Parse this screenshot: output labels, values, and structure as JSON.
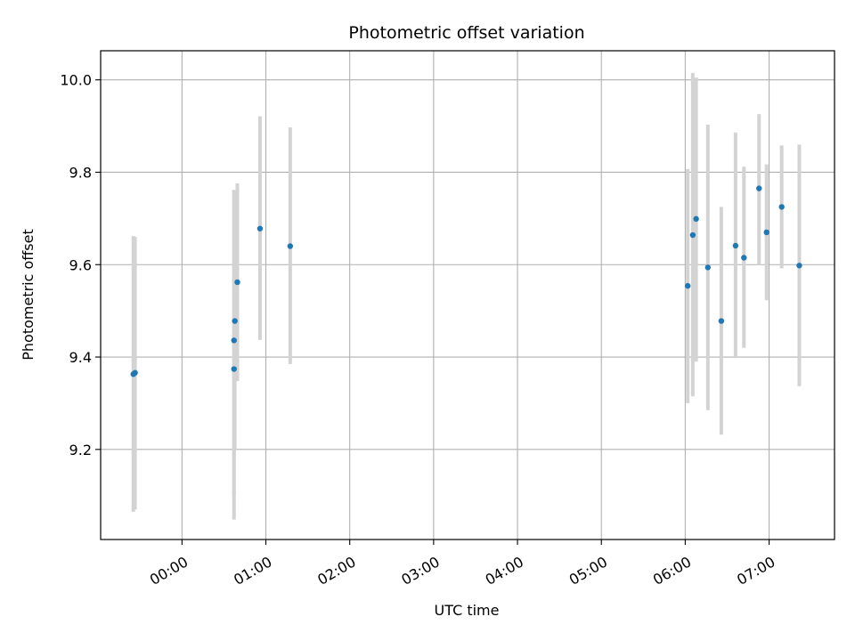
{
  "chart_data": {
    "type": "scatter",
    "title": "Photometric offset variation",
    "xlabel": "UTC time",
    "ylabel": "Photometric offset",
    "x_unit": "hours UTC",
    "xlim": [
      -0.97,
      7.78
    ],
    "ylim": [
      9.005,
      10.063
    ],
    "x_ticks": [
      {
        "value": 0,
        "label": "00:00"
      },
      {
        "value": 1,
        "label": "01:00"
      },
      {
        "value": 2,
        "label": "02:00"
      },
      {
        "value": 3,
        "label": "03:00"
      },
      {
        "value": 4,
        "label": "04:00"
      },
      {
        "value": 5,
        "label": "05:00"
      },
      {
        "value": 6,
        "label": "06:00"
      },
      {
        "value": 7,
        "label": "07:00"
      }
    ],
    "y_ticks": [
      {
        "value": 9.2,
        "label": "9.2"
      },
      {
        "value": 9.4,
        "label": "9.4"
      },
      {
        "value": 9.6,
        "label": "9.6"
      },
      {
        "value": 9.8,
        "label": "9.8"
      },
      {
        "value": 10.0,
        "label": "10.0"
      }
    ],
    "grid": true,
    "marker_color": "#1f77b4",
    "errorbar_color": "#d3d3d3",
    "points": [
      {
        "x": -0.58,
        "y": 9.363,
        "low": 9.065,
        "high": 9.662
      },
      {
        "x": -0.56,
        "y": 9.366,
        "low": 9.07,
        "high": 9.66
      },
      {
        "x": 0.62,
        "y": 9.374,
        "low": 9.048,
        "high": 9.762
      },
      {
        "x": 0.62,
        "y": 9.436,
        "low": 9.1,
        "high": 9.76
      },
      {
        "x": 0.63,
        "y": 9.478,
        "low": 9.2,
        "high": 9.75
      },
      {
        "x": 0.66,
        "y": 9.562,
        "low": 9.348,
        "high": 9.776
      },
      {
        "x": 0.93,
        "y": 9.678,
        "low": 9.437,
        "high": 9.921
      },
      {
        "x": 1.29,
        "y": 9.64,
        "low": 9.385,
        "high": 9.897
      },
      {
        "x": 6.03,
        "y": 9.554,
        "low": 9.3,
        "high": 9.807
      },
      {
        "x": 6.09,
        "y": 9.664,
        "low": 9.315,
        "high": 10.015
      },
      {
        "x": 6.13,
        "y": 9.699,
        "low": 9.39,
        "high": 10.005
      },
      {
        "x": 6.27,
        "y": 9.594,
        "low": 9.285,
        "high": 9.903
      },
      {
        "x": 6.43,
        "y": 9.478,
        "low": 9.232,
        "high": 9.725
      },
      {
        "x": 6.6,
        "y": 9.641,
        "low": 9.398,
        "high": 9.886
      },
      {
        "x": 6.7,
        "y": 9.615,
        "low": 9.42,
        "high": 9.812
      },
      {
        "x": 6.88,
        "y": 9.765,
        "low": 9.6,
        "high": 9.926
      },
      {
        "x": 6.97,
        "y": 9.67,
        "low": 9.523,
        "high": 9.817
      },
      {
        "x": 7.15,
        "y": 9.725,
        "low": 9.592,
        "high": 9.858
      },
      {
        "x": 7.36,
        "y": 9.598,
        "low": 9.337,
        "high": 9.86
      }
    ]
  }
}
